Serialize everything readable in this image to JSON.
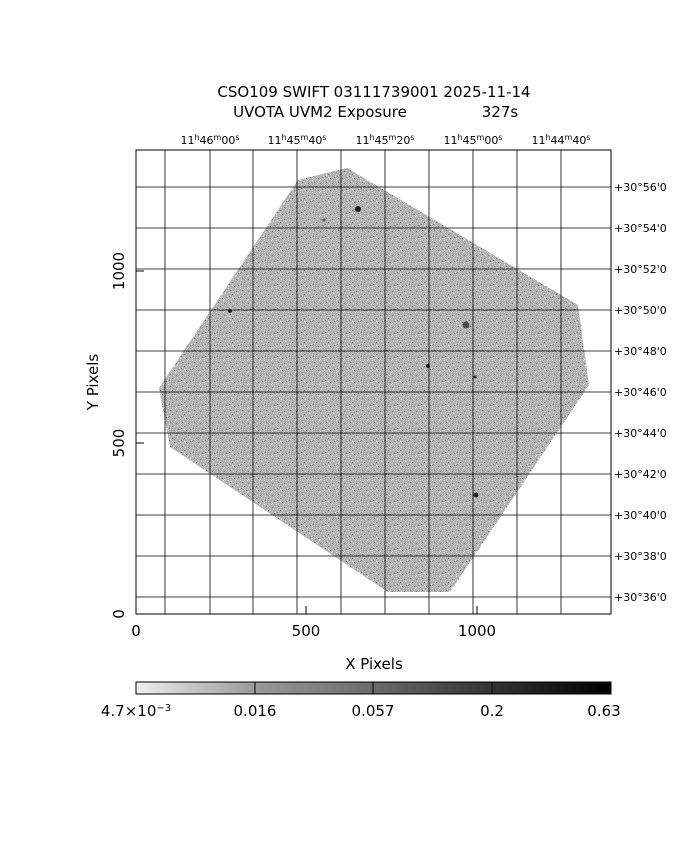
{
  "title": {
    "line1": "CSO109 SWIFT 03111739001 2025-11-14",
    "line2_left": "UVOTA UVM2 Exposure",
    "line2_right": "327s"
  },
  "axes": {
    "xlabel": "X Pixels",
    "ylabel": "Y Pixels",
    "xlim": [
      0,
      1370
    ],
    "ylim": [
      0,
      1355
    ],
    "x_ticks": [
      "0",
      "500",
      "1000"
    ],
    "y_ticks": [
      "0",
      "500",
      "1000"
    ]
  },
  "ra_labels": [
    {
      "h": "11",
      "m": "46",
      "s": "00"
    },
    {
      "h": "11",
      "m": "45",
      "s": "40"
    },
    {
      "h": "11",
      "m": "45",
      "s": "20"
    },
    {
      "h": "11",
      "m": "45",
      "s": "00"
    },
    {
      "h": "11",
      "m": "44",
      "s": "40"
    }
  ],
  "dec_labels": [
    "+30°56'0",
    "+30°54'0",
    "+30°52'0",
    "+30°50'0",
    "+30°48'0",
    "+30°46'0",
    "+30°44'0",
    "+30°42'0",
    "+30°40'0",
    "+30°38'0",
    "+30°36'0"
  ],
  "colorbar": {
    "labels": [
      {
        "mantissa": "4.7×10",
        "exp": "−3"
      },
      {
        "text": "0.016"
      },
      {
        "text": "0.057"
      },
      {
        "text": "0.2"
      },
      {
        "text": "0.63"
      }
    ]
  },
  "image": {
    "background_color": "#ffffff",
    "noise_color": "#8c8c8c"
  }
}
